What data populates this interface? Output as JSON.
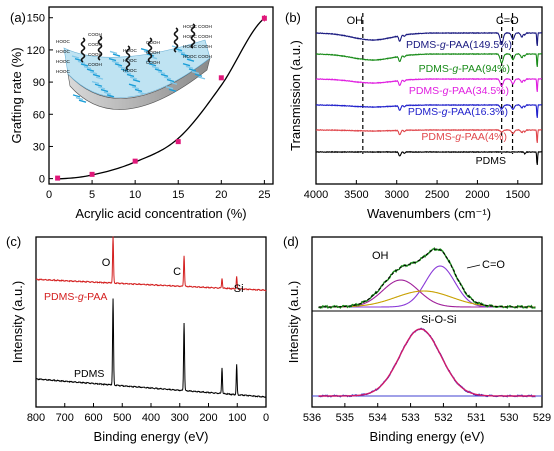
{
  "chart_data": [
    {
      "panel": "(a)",
      "type": "line",
      "xlabel": "Acrylic acid concentration (%)",
      "ylabel": "Grafting rate (%)",
      "xlim": [
        0,
        26
      ],
      "ylim": [
        -5,
        160
      ],
      "xticks": [
        0,
        5,
        10,
        15,
        20,
        25
      ],
      "yticks": [
        0,
        30,
        60,
        90,
        120,
        150
      ],
      "colors": {
        "fit": "#000000",
        "points": "#e0187a"
      },
      "points": [
        {
          "x": 1,
          "y": 0.5,
          "err": 1
        },
        {
          "x": 5,
          "y": 4,
          "err": 1
        },
        {
          "x": 10,
          "y": 16.3,
          "err": 1
        },
        {
          "x": 15,
          "y": 34.5,
          "err": 2
        },
        {
          "x": 20,
          "y": 94,
          "err": 2
        },
        {
          "x": 25,
          "y": 149.5,
          "err": 3
        }
      ],
      "fit": [
        [
          1,
          -0.3
        ],
        [
          5,
          3.5
        ],
        [
          10,
          15.5
        ],
        [
          15,
          37.5
        ],
        [
          20,
          87
        ],
        [
          25,
          149.5
        ]
      ],
      "inset": {
        "chain_label": "COOH",
        "chain_label_left": "HOOC"
      }
    },
    {
      "panel": "(b)",
      "type": "line",
      "xlabel": "Wavenumbers (cm⁻¹)",
      "ylabel": "Transmission (a.u.)",
      "xlim": [
        4000,
        1200
      ],
      "xticks": [
        4000,
        3500,
        3000,
        2500,
        2000,
        1500
      ],
      "dashed_lines": [
        3420,
        1700,
        1565
      ],
      "annotations": [
        "OH",
        "C=O"
      ],
      "series": [
        {
          "name": "PDMS",
          "color": "#000000"
        },
        {
          "name_parts": [
            "PDMS-",
            "g",
            "-PAA(4%)"
          ],
          "color": "#e0474c"
        },
        {
          "name_parts": [
            "PDMS-",
            "g",
            "-PAA(16.3%)"
          ],
          "color": "#2222cc"
        },
        {
          "name_parts": [
            "PDMS-",
            "g",
            "-PAA(34.5%)"
          ],
          "color": "#e020e0"
        },
        {
          "name_parts": [
            "PDMS-",
            "g",
            "-PAA(94%)"
          ],
          "color": "#1a8c1a"
        },
        {
          "name_parts": [
            "PDMS-",
            "g",
            "-PAA(149.5%)"
          ],
          "color": "#1a1a80"
        }
      ]
    },
    {
      "panel": "(c)",
      "type": "line",
      "xlabel": "Binding energy (eV)",
      "ylabel": "Intensity (a.u.)",
      "xlim": [
        800,
        0
      ],
      "xticks": [
        800,
        700,
        600,
        500,
        400,
        300,
        200,
        100,
        0
      ],
      "peaks": [
        {
          "label": "O",
          "position": 532
        },
        {
          "label": "C",
          "position": 285
        },
        {
          "label": "Si",
          "position": 102
        }
      ],
      "series": [
        {
          "name_parts": [
            "PDMS-",
            "g",
            "-PAA"
          ],
          "color": "#d42020"
        },
        {
          "name": "PDMS",
          "color": "#000000"
        }
      ]
    },
    {
      "panel": "(d)",
      "type": "line",
      "xlabel": "Binding energy (eV)",
      "ylabel": "Intensity (a.u.)",
      "xlim": [
        536,
        529
      ],
      "xticks": [
        536,
        535,
        534,
        533,
        532,
        531,
        530,
        529
      ],
      "annotations": [
        "OH",
        "C=O",
        "Si-O-Si"
      ],
      "colors": {
        "data": "#1a8c1a",
        "envelope": "#000000",
        "oh": "#a0209a",
        "co": "#8a3ad8",
        "sios": "#c8a000",
        "pdms_data": "#2030c8",
        "pdms_fit": "#d01a6a",
        "baseline": "#4040d0"
      }
    }
  ]
}
